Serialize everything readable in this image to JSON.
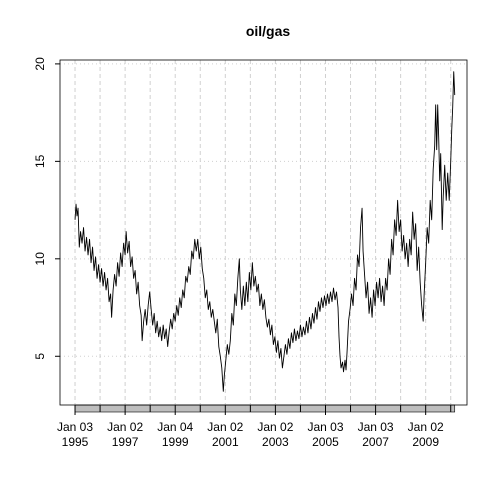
{
  "chart_data": {
    "type": "line",
    "title": "oil/gas",
    "xlim": [
      1994.4,
      2010.65
    ],
    "ylim": [
      2.5,
      20.2
    ],
    "yticks": [
      5,
      10,
      15,
      20
    ],
    "xticks": [
      {
        "value": 1995.0,
        "label": "Jan 03 1995"
      },
      {
        "value": 1997.0,
        "label": "Jan 02 1997"
      },
      {
        "value": 1999.0,
        "label": "Jan 04 1999"
      },
      {
        "value": 2001.0,
        "label": "Jan 02 2001"
      },
      {
        "value": 2003.0,
        "label": "Jan 02 2003"
      },
      {
        "value": 2005.0,
        "label": "Jan 03 2005"
      },
      {
        "value": 2007.0,
        "label": "Jan 03 2007"
      },
      {
        "value": 2009.0,
        "label": "Jan 02 2009"
      }
    ],
    "xticks_minor": [
      1996.0,
      1998.0,
      2000.0,
      2002.0,
      2004.0,
      2006.0,
      2008.0,
      2010.0
    ],
    "grid": true,
    "color": "#000000",
    "x": [
      1995.0,
      1995.04,
      1995.08,
      1995.12,
      1995.17,
      1995.22,
      1995.28,
      1995.34,
      1995.4,
      1995.46,
      1995.52,
      1995.58,
      1995.64,
      1995.7,
      1995.76,
      1995.82,
      1995.88,
      1995.94,
      1996.0,
      1996.06,
      1996.12,
      1996.18,
      1996.24,
      1996.3,
      1996.36,
      1996.42,
      1996.46,
      1996.52,
      1996.58,
      1996.64,
      1996.7,
      1996.76,
      1996.82,
      1996.88,
      1996.94,
      1997.0,
      1997.04,
      1997.1,
      1997.16,
      1997.22,
      1997.28,
      1997.34,
      1997.4,
      1997.46,
      1997.52,
      1997.58,
      1997.64,
      1997.68,
      1997.74,
      1997.8,
      1997.86,
      1997.92,
      1997.98,
      1998.04,
      1998.1,
      1998.16,
      1998.22,
      1998.28,
      1998.34,
      1998.4,
      1998.46,
      1998.52,
      1998.58,
      1998.64,
      1998.7,
      1998.76,
      1998.82,
      1998.88,
      1998.94,
      1999.0,
      1999.06,
      1999.12,
      1999.18,
      1999.24,
      1999.3,
      1999.36,
      1999.42,
      1999.48,
      1999.54,
      1999.6,
      1999.66,
      1999.72,
      1999.78,
      1999.84,
      1999.9,
      1999.96,
      2000.02,
      2000.08,
      2000.14,
      2000.2,
      2000.26,
      2000.32,
      2000.38,
      2000.44,
      2000.5,
      2000.56,
      2000.62,
      2000.68,
      2000.74,
      2000.8,
      2000.86,
      2000.92,
      2000.96,
      2001.02,
      2001.08,
      2001.14,
      2001.2,
      2001.26,
      2001.32,
      2001.38,
      2001.44,
      2001.5,
      2001.56,
      2001.6,
      2001.66,
      2001.72,
      2001.78,
      2001.84,
      2001.9,
      2001.96,
      2002.02,
      2002.08,
      2002.14,
      2002.2,
      2002.26,
      2002.32,
      2002.38,
      2002.44,
      2002.5,
      2002.56,
      2002.62,
      2002.68,
      2002.74,
      2002.8,
      2002.86,
      2002.92,
      2002.98,
      2003.04,
      2003.1,
      2003.16,
      2003.22,
      2003.28,
      2003.34,
      2003.4,
      2003.46,
      2003.52,
      2003.58,
      2003.64,
      2003.7,
      2003.76,
      2003.82,
      2003.88,
      2003.94,
      2004.0,
      2004.06,
      2004.12,
      2004.18,
      2004.24,
      2004.3,
      2004.36,
      2004.42,
      2004.48,
      2004.54,
      2004.6,
      2004.66,
      2004.72,
      2004.78,
      2004.84,
      2004.9,
      2004.96,
      2005.02,
      2005.08,
      2005.14,
      2005.2,
      2005.26,
      2005.32,
      2005.38,
      2005.44,
      2005.5,
      2005.54,
      2005.58,
      2005.62,
      2005.68,
      2005.72,
      2005.78,
      2005.82,
      2005.86,
      2005.92,
      2005.98,
      2006.04,
      2006.1,
      2006.16,
      2006.22,
      2006.28,
      2006.34,
      2006.4,
      2006.46,
      2006.5,
      2006.56,
      2006.62,
      2006.68,
      2006.74,
      2006.8,
      2006.86,
      2006.92,
      2006.98,
      2007.04,
      2007.1,
      2007.16,
      2007.22,
      2007.28,
      2007.34,
      2007.4,
      2007.46,
      2007.52,
      2007.58,
      2007.64,
      2007.7,
      2007.76,
      2007.82,
      2007.88,
      2007.94,
      2008.0,
      2008.06,
      2008.12,
      2008.18,
      2008.24,
      2008.3,
      2008.36,
      2008.42,
      2008.48,
      2008.54,
      2008.6,
      2008.66,
      2008.72,
      2008.78,
      2008.84,
      2008.9,
      2008.94,
      2009.0,
      2009.06,
      2009.12,
      2009.18,
      2009.24,
      2009.3,
      2009.36,
      2009.4,
      2009.44,
      2009.48,
      2009.52,
      2009.56,
      2009.6,
      2009.66,
      2009.7,
      2009.76,
      2009.82,
      2009.88,
      2009.94,
      2010.0,
      2010.04,
      2010.08,
      2010.12,
      2010.16
    ],
    "values": [
      12.0,
      12.8,
      12.2,
      12.6,
      10.6,
      11.4,
      10.8,
      11.6,
      10.4,
      11.1,
      10.2,
      11.0,
      9.8,
      10.6,
      9.4,
      10.1,
      9.0,
      9.7,
      8.8,
      9.5,
      8.6,
      9.3,
      8.4,
      9.0,
      7.8,
      8.2,
      7.0,
      8.4,
      9.2,
      8.6,
      9.8,
      9.1,
      10.3,
      9.6,
      10.8,
      10.2,
      11.4,
      10.3,
      10.9,
      9.6,
      10.1,
      9.0,
      9.4,
      8.2,
      8.8,
      7.6,
      7.1,
      5.8,
      6.8,
      7.4,
      6.6,
      7.6,
      8.3,
      7.4,
      6.6,
      7.2,
      6.2,
      6.8,
      6.0,
      6.5,
      5.8,
      6.6,
      5.9,
      6.4,
      5.5,
      6.3,
      6.9,
      6.4,
      7.2,
      6.8,
      7.6,
      7.1,
      8.0,
      7.5,
      8.4,
      8.0,
      9.1,
      8.8,
      9.6,
      9.2,
      10.4,
      10.0,
      11.0,
      10.4,
      11.0,
      10.0,
      10.6,
      9.5,
      9.0,
      8.0,
      8.4,
      7.4,
      7.8,
      7.0,
      7.4,
      6.8,
      6.2,
      6.9,
      5.5,
      5.0,
      4.4,
      3.2,
      4.0,
      4.8,
      5.6,
      5.1,
      5.8,
      7.2,
      6.6,
      8.2,
      7.6,
      9.0,
      10.0,
      8.4,
      7.4,
      8.6,
      7.6,
      8.8,
      7.8,
      9.3,
      8.4,
      9.8,
      8.6,
      9.1,
      8.3,
      8.7,
      7.6,
      8.2,
      7.4,
      7.9,
      7.0,
      6.5,
      6.9,
      6.1,
      6.6,
      5.6,
      6.0,
      5.2,
      5.8,
      4.9,
      5.4,
      4.4,
      5.0,
      5.6,
      5.1,
      5.9,
      5.4,
      6.2,
      5.7,
      6.4,
      5.8,
      6.3,
      5.9,
      6.6,
      6.0,
      6.5,
      6.1,
      6.8,
      6.2,
      7.0,
      6.4,
      7.2,
      6.7,
      7.5,
      6.9,
      7.8,
      7.3,
      8.0,
      7.5,
      8.1,
      7.6,
      8.2,
      7.7,
      8.3,
      7.8,
      8.5,
      7.9,
      8.3,
      7.5,
      6.0,
      5.0,
      4.4,
      4.7,
      4.2,
      4.8,
      4.3,
      5.2,
      6.8,
      7.4,
      8.2,
      7.6,
      9.0,
      8.4,
      10.2,
      9.6,
      11.6,
      12.6,
      10.4,
      9.2,
      8.0,
      8.8,
      7.2,
      8.0,
      7.0,
      8.4,
      7.6,
      8.8,
      8.0,
      9.0,
      7.8,
      8.6,
      7.6,
      9.0,
      8.4,
      10.0,
      9.2,
      11.0,
      10.2,
      12.0,
      11.2,
      13.0,
      11.4,
      12.0,
      10.4,
      11.2,
      10.0,
      10.8,
      9.6,
      11.0,
      10.2,
      12.4,
      11.0,
      11.8,
      9.4,
      10.6,
      8.8,
      7.6,
      6.8,
      8.2,
      9.8,
      11.6,
      10.8,
      13.0,
      12.0,
      14.6,
      15.8,
      17.9,
      15.6,
      17.9,
      16.2,
      14.0,
      15.4,
      11.5,
      13.2,
      14.8,
      13.0,
      14.4,
      13.0,
      15.0,
      16.6,
      17.8,
      19.6,
      18.4
    ]
  }
}
